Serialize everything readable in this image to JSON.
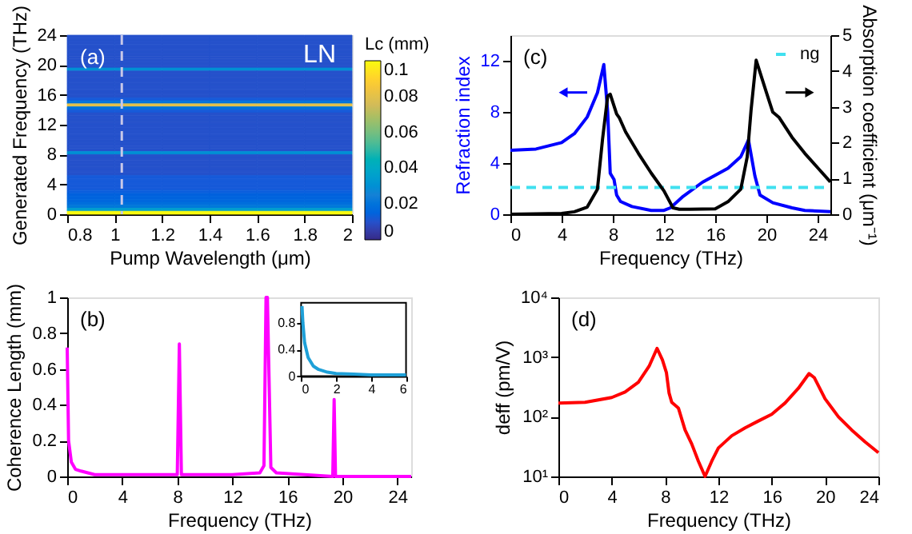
{
  "chart_data": [
    {
      "type": "heatmap",
      "xlabel": "Pump Wavelength (μm)",
      "ylabel": "Generated Frequency (THz)",
      "clabel": "Lc (mm)",
      "annotations": [
        "(a)",
        "LN"
      ],
      "x": [
        0.9,
        1.1,
        1.3,
        1.5,
        1.7,
        1.9
      ],
      "y": [
        23.8,
        23.4,
        23.0,
        22.6,
        22.2,
        21.8,
        21.4,
        21.0,
        20.6,
        20.2,
        19.8,
        19.4,
        19.0,
        18.6,
        18.2,
        17.8,
        17.4,
        17.0,
        16.6,
        16.2,
        15.8,
        15.4,
        15.0,
        14.6,
        14.2,
        13.8,
        13.4,
        13.0,
        12.6,
        12.2,
        11.8,
        11.4,
        11.0,
        10.6,
        10.2,
        9.8,
        9.4,
        9.0,
        8.6,
        8.2,
        7.8,
        7.4,
        7.0,
        6.6,
        6.2,
        5.8,
        5.4,
        5.0,
        4.6,
        4.2,
        3.8,
        3.4,
        3.0,
        2.6,
        2.2,
        1.8,
        1.4,
        1.0,
        0.6,
        0.2
      ],
      "cells": [
        [
          0.01,
          0.01,
          0.01,
          0.01,
          0.01,
          0.01
        ],
        [
          0.01,
          0.01,
          0.01,
          0.01,
          0.01,
          0.01
        ],
        [
          0.01,
          0.01,
          0.01,
          0.01,
          0.01,
          0.01
        ],
        [
          0.01,
          0.01,
          0.01,
          0.01,
          0.01,
          0.01
        ],
        [
          0.01,
          0.01,
          0.01,
          0.01,
          0.01,
          0.01
        ],
        [
          0.01,
          0.01,
          0.01,
          0.01,
          0.01,
          0.01
        ],
        [
          0.01,
          0.01,
          0.01,
          0.01,
          0.01,
          0.01
        ],
        [
          0.01,
          0.01,
          0.01,
          0.01,
          0.01,
          0.01
        ],
        [
          0.01,
          0.01,
          0.01,
          0.01,
          0.01,
          0.01
        ],
        [
          0.01,
          0.01,
          0.01,
          0.01,
          0.01,
          0.01
        ],
        [
          0.01,
          0.01,
          0.01,
          0.01,
          0.01,
          0.01
        ],
        [
          0.03,
          0.03,
          0.03,
          0.03,
          0.03,
          0.03
        ],
        [
          0.01,
          0.01,
          0.01,
          0.01,
          0.01,
          0.01
        ],
        [
          0.01,
          0.01,
          0.01,
          0.01,
          0.01,
          0.01
        ],
        [
          0.01,
          0.01,
          0.01,
          0.01,
          0.01,
          0.01
        ],
        [
          0.01,
          0.01,
          0.01,
          0.01,
          0.01,
          0.01
        ],
        [
          0.01,
          0.01,
          0.01,
          0.01,
          0.01,
          0.01
        ],
        [
          0.01,
          0.01,
          0.01,
          0.01,
          0.01,
          0.01
        ],
        [
          0.01,
          0.01,
          0.01,
          0.01,
          0.01,
          0.01
        ],
        [
          0.01,
          0.01,
          0.01,
          0.01,
          0.01,
          0.01
        ],
        [
          0.01,
          0.01,
          0.01,
          0.01,
          0.01,
          0.01
        ],
        [
          0.012,
          0.012,
          0.012,
          0.012,
          0.012,
          0.012
        ],
        [
          0.02,
          0.02,
          0.02,
          0.02,
          0.02,
          0.02
        ],
        [
          0.08,
          0.08,
          0.08,
          0.08,
          0.08,
          0.08
        ],
        [
          0.02,
          0.02,
          0.02,
          0.02,
          0.02,
          0.02
        ],
        [
          0.012,
          0.012,
          0.012,
          0.012,
          0.012,
          0.012
        ],
        [
          0.01,
          0.01,
          0.01,
          0.01,
          0.01,
          0.01
        ],
        [
          0.01,
          0.01,
          0.01,
          0.01,
          0.01,
          0.01
        ],
        [
          0.01,
          0.01,
          0.01,
          0.01,
          0.01,
          0.01
        ],
        [
          0.01,
          0.01,
          0.01,
          0.01,
          0.01,
          0.01
        ],
        [
          0.01,
          0.01,
          0.01,
          0.01,
          0.01,
          0.01
        ],
        [
          0.01,
          0.01,
          0.01,
          0.01,
          0.01,
          0.01
        ],
        [
          0.01,
          0.01,
          0.01,
          0.01,
          0.01,
          0.01
        ],
        [
          0.01,
          0.01,
          0.01,
          0.01,
          0.01,
          0.01
        ],
        [
          0.01,
          0.01,
          0.01,
          0.01,
          0.01,
          0.01
        ],
        [
          0.01,
          0.01,
          0.01,
          0.01,
          0.01,
          0.01
        ],
        [
          0.01,
          0.01,
          0.01,
          0.01,
          0.01,
          0.01
        ],
        [
          0.01,
          0.01,
          0.01,
          0.01,
          0.01,
          0.01
        ],
        [
          0.01,
          0.01,
          0.01,
          0.01,
          0.01,
          0.01
        ],
        [
          0.03,
          0.03,
          0.03,
          0.03,
          0.03,
          0.03
        ],
        [
          0.01,
          0.01,
          0.01,
          0.01,
          0.01,
          0.01
        ],
        [
          0.01,
          0.01,
          0.01,
          0.01,
          0.01,
          0.01
        ],
        [
          0.01,
          0.01,
          0.01,
          0.01,
          0.01,
          0.01
        ],
        [
          0.01,
          0.01,
          0.01,
          0.01,
          0.01,
          0.01
        ],
        [
          0.01,
          0.01,
          0.01,
          0.01,
          0.01,
          0.01
        ],
        [
          0.01,
          0.01,
          0.01,
          0.01,
          0.01,
          0.01
        ],
        [
          0.01,
          0.01,
          0.01,
          0.01,
          0.01,
          0.01
        ],
        [
          0.012,
          0.012,
          0.012,
          0.012,
          0.012,
          0.012
        ],
        [
          0.012,
          0.012,
          0.012,
          0.012,
          0.012,
          0.012
        ],
        [
          0.012,
          0.012,
          0.012,
          0.012,
          0.012,
          0.012
        ],
        [
          0.012,
          0.012,
          0.012,
          0.012,
          0.012,
          0.012
        ],
        [
          0.012,
          0.012,
          0.012,
          0.012,
          0.012,
          0.012
        ],
        [
          0.013,
          0.013,
          0.013,
          0.013,
          0.013,
          0.013
        ],
        [
          0.014,
          0.014,
          0.014,
          0.014,
          0.014,
          0.014
        ],
        [
          0.015,
          0.015,
          0.015,
          0.015,
          0.015,
          0.015
        ],
        [
          0.016,
          0.016,
          0.016,
          0.016,
          0.016,
          0.016
        ],
        [
          0.018,
          0.018,
          0.018,
          0.018,
          0.018,
          0.018
        ],
        [
          0.022,
          0.022,
          0.022,
          0.022,
          0.022,
          0.022
        ],
        [
          0.035,
          0.035,
          0.035,
          0.035,
          0.035,
          0.035
        ],
        [
          0.1,
          0.1,
          0.1,
          0.1,
          0.1,
          0.1
        ]
      ],
      "xlim": [
        0.8,
        2
      ],
      "xticks": [
        0.8,
        1,
        1.2,
        1.4,
        1.6,
        1.8,
        2
      ],
      "ylim": [
        0,
        24
      ],
      "yticks": [
        0,
        4,
        8,
        12,
        16,
        20,
        24
      ],
      "clim": [
        0,
        0.1
      ],
      "cticks": [
        0,
        0.02,
        0.04,
        0.06,
        0.08,
        0.1
      ],
      "ref_lines": [
        {
          "axis": "x",
          "value": 1.03,
          "color": "#c8c8e8",
          "line_style": "dashed"
        }
      ]
    },
    {
      "type": "line",
      "xlabel": "Frequency (THz)",
      "ylabel": "Refraction index",
      "y2label": "Absorption coefficient (μm⁻¹)",
      "annotations": [
        "(c)"
      ],
      "legend": "top right",
      "xlim": [
        0,
        25
      ],
      "xticks": [
        0,
        4,
        8,
        12,
        16,
        20,
        24
      ],
      "ylim": [
        0,
        14
      ],
      "yticks": [
        0,
        4,
        8,
        12
      ],
      "y2lim": [
        0,
        5
      ],
      "y2ticks": [
        0,
        1,
        2,
        3,
        4,
        5
      ],
      "series": [
        {
          "color": "#0000ff",
          "x": [
            0,
            2,
            4,
            5,
            6,
            6.8,
            7.3,
            7.6,
            7.8,
            8.1,
            8.3,
            8.6,
            9.5,
            11,
            12,
            12.5,
            13.5,
            15,
            17,
            18,
            18.6,
            19.1,
            19.5,
            20.5,
            22,
            23,
            25
          ],
          "values": [
            5.0,
            5.1,
            5.6,
            6.3,
            7.6,
            9.5,
            11.7,
            8.0,
            3.2,
            2.7,
            1.5,
            1.0,
            0.6,
            0.3,
            0.3,
            0.5,
            1.4,
            2.5,
            3.6,
            4.5,
            5.8,
            3.0,
            1.5,
            0.9,
            0.5,
            0.3,
            0.2
          ]
        },
        {
          "color": "#000000",
          "axis": "y2",
          "x": [
            0,
            4,
            5,
            6,
            6.8,
            7.2,
            7.6,
            7.8,
            8.3,
            8.5,
            9,
            10,
            11,
            12,
            12.7,
            13.2,
            14,
            16,
            17,
            18,
            18.5,
            18.8,
            19.2,
            20,
            20.5,
            21,
            22,
            23,
            24,
            25
          ],
          "values": [
            0,
            0.02,
            0.07,
            0.2,
            0.7,
            2.1,
            3.3,
            3.35,
            2.8,
            2.7,
            2.3,
            1.7,
            1.15,
            0.65,
            0.18,
            0.14,
            0.14,
            0.15,
            0.35,
            0.7,
            1.6,
            2.9,
            4.3,
            3.4,
            2.85,
            2.7,
            2.15,
            1.7,
            1.3,
            0.9
          ]
        },
        {
          "name": "ng",
          "color": "#40e0f0",
          "line_style": "dashed",
          "x": [
            0,
            25
          ],
          "values": [
            2.1,
            2.1
          ]
        }
      ]
    },
    {
      "type": "line",
      "xlabel": "Frequency (THz)",
      "ylabel": "Coherence Length (mm)",
      "annotations": [
        "(b)"
      ],
      "xlim": [
        0,
        25
      ],
      "xticks": [
        0,
        4,
        8,
        12,
        16,
        20,
        24
      ],
      "ylim": [
        0,
        1
      ],
      "yticks": [
        0,
        0.2,
        0.4,
        0.6,
        0.8,
        1
      ],
      "series": [
        {
          "color": "#ff00ff",
          "x": [
            0,
            0.1,
            0.3,
            0.6,
            1,
            2,
            4,
            8.0,
            8.15,
            8.3,
            12,
            14.0,
            14.3,
            14.45,
            14.55,
            14.8,
            15.2,
            19.3,
            19.4,
            19.5,
            25
          ],
          "values": [
            0.72,
            0.2,
            0.08,
            0.04,
            0.03,
            0.01,
            0.01,
            0.01,
            0.74,
            0.01,
            0.01,
            0.02,
            0.06,
            1.0,
            1.0,
            0.05,
            0.02,
            0,
            0.43,
            0,
            0
          ]
        }
      ]
    },
    {
      "type": "line",
      "xlim": [
        0,
        6
      ],
      "xticks": [
        0,
        2,
        4,
        6
      ],
      "ylim": [
        0,
        1.1
      ],
      "yticks": [
        0,
        0.4,
        0.8
      ],
      "series": [
        {
          "color": "#1ea0d8",
          "x": [
            0.05,
            0.1,
            0.2,
            0.4,
            0.7,
            1,
            1.5,
            2,
            3,
            4,
            6
          ],
          "values": [
            1.05,
            0.8,
            0.5,
            0.28,
            0.15,
            0.1,
            0.06,
            0.04,
            0.03,
            0.02,
            0.02
          ]
        }
      ]
    },
    {
      "type": "line",
      "xlabel": "Frequency (THz)",
      "ylabel": "deff (pm/V)",
      "annotations": [
        "(d)"
      ],
      "log": "y",
      "xlim": [
        0,
        24
      ],
      "xticks": [
        0,
        4,
        8,
        12,
        16,
        20,
        24
      ],
      "ylim": [
        10,
        10000
      ],
      "yticks": [
        {
          "value": 10,
          "label": "10¹"
        },
        {
          "value": 100,
          "label": "10²"
        },
        {
          "value": 1000,
          "label": "10³"
        },
        {
          "value": 10000,
          "label": "10⁴"
        }
      ],
      "series": [
        {
          "color": "#ff0000",
          "x": [
            0,
            2,
            4,
            5,
            6,
            6.8,
            7.4,
            7.8,
            8.1,
            8.3,
            8.5,
            9,
            9.5,
            10,
            10.5,
            11,
            11.5,
            12,
            13,
            14,
            15,
            16,
            17,
            18,
            18.8,
            19.2,
            20,
            21,
            22,
            23,
            24
          ],
          "values": [
            170,
            175,
            210,
            260,
            380,
            700,
            1400,
            900,
            550,
            250,
            175,
            140,
            60,
            35,
            18,
            10,
            18,
            30,
            48,
            65,
            85,
            110,
            170,
            300,
            530,
            450,
            200,
            100,
            60,
            38,
            25
          ]
        }
      ]
    }
  ]
}
